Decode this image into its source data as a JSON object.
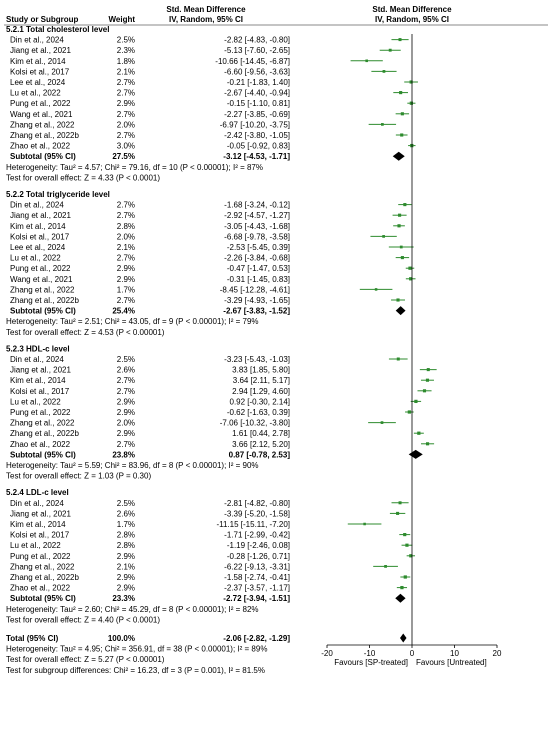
{
  "chart_data": {
    "type": "forest",
    "header": {
      "col_study": "Study or Subgroup",
      "col_weight": "Weight",
      "col_effect_1": "Std. Mean Difference",
      "col_effect_2": "IV, Random, 95% CI",
      "plot_title_1": "Std. Mean Difference",
      "plot_title_2": "IV, Random, 95% CI"
    },
    "axis": {
      "min": -20,
      "max": 20,
      "ticks": [
        -20,
        -10,
        0,
        10,
        20
      ],
      "tick_labels": [
        "-20",
        "-10",
        "0",
        "10",
        "20"
      ],
      "label_left": "Favours [SP-treated]",
      "label_right": "Favours [Untreated]"
    },
    "subgroups": [
      {
        "title": "5.2.1 Total cholesterol level",
        "studies": [
          {
            "study": "Din et al., 2024",
            "weight": "2.5%",
            "est": -2.82,
            "lo": -4.83,
            "hi": -0.8,
            "ci": "-2.82 [-4.83, -0.80]"
          },
          {
            "study": "Jiang et al., 2021",
            "weight": "2.3%",
            "est": -5.13,
            "lo": -7.6,
            "hi": -2.65,
            "ci": "-5.13 [-7.60, -2.65]"
          },
          {
            "study": "Kim et al., 2014",
            "weight": "1.8%",
            "est": -10.66,
            "lo": -14.45,
            "hi": -6.87,
            "ci": "-10.66 [-14.45, -6.87]"
          },
          {
            "study": "Kolsi et al., 2017",
            "weight": "2.1%",
            "est": -6.6,
            "lo": -9.56,
            "hi": -3.63,
            "ci": "-6.60 [-9.56, -3.63]"
          },
          {
            "study": "Lee et al., 2024",
            "weight": "2.7%",
            "est": -0.21,
            "lo": -1.83,
            "hi": 1.4,
            "ci": "-0.21 [-1.83, 1.40]"
          },
          {
            "study": "Lu et al., 2022",
            "weight": "2.7%",
            "est": -2.67,
            "lo": -4.4,
            "hi": -0.94,
            "ci": "-2.67 [-4.40, -0.94]"
          },
          {
            "study": "Pung et al., 2022",
            "weight": "2.9%",
            "est": -0.15,
            "lo": -1.1,
            "hi": 0.81,
            "ci": "-0.15 [-1.10, 0.81]"
          },
          {
            "study": "Wang et al., 2021",
            "weight": "2.7%",
            "est": -2.27,
            "lo": -3.85,
            "hi": -0.69,
            "ci": "-2.27 [-3.85, -0.69]"
          },
          {
            "study": "Zhang et al., 2022",
            "weight": "2.0%",
            "est": -6.97,
            "lo": -10.2,
            "hi": -3.75,
            "ci": "-6.97 [-10.20, -3.75]"
          },
          {
            "study": "Zhang et al., 2022b",
            "weight": "2.7%",
            "est": -2.42,
            "lo": -3.8,
            "hi": -1.05,
            "ci": "-2.42 [-3.80, -1.05]"
          },
          {
            "study": "Zhao et al., 2022",
            "weight": "3.0%",
            "est": -0.05,
            "lo": -0.92,
            "hi": 0.83,
            "ci": "-0.05 [-0.92, 0.83]"
          }
        ],
        "subtotal": {
          "label": "Subtotal (95% CI)",
          "weight": "27.5%",
          "est": -3.12,
          "lo": -4.53,
          "hi": -1.71,
          "ci": "-3.12 [-4.53, -1.71]"
        },
        "heterogeneity": "Heterogeneity: Tau² = 4.57; Chi² = 79.16, df = 10 (P < 0.00001); I² = 87%",
        "overall_test": "Test for overall effect: Z = 4.33 (P < 0.0001)"
      },
      {
        "title": "5.2.2 Total triglyceride level",
        "studies": [
          {
            "study": "Din et al., 2024",
            "weight": "2.7%",
            "est": -1.68,
            "lo": -3.24,
            "hi": -0.12,
            "ci": "-1.68 [-3.24, -0.12]"
          },
          {
            "study": "Jiang et al., 2021",
            "weight": "2.7%",
            "est": -2.92,
            "lo": -4.57,
            "hi": -1.27,
            "ci": "-2.92 [-4.57, -1.27]"
          },
          {
            "study": "Kim et al., 2014",
            "weight": "2.8%",
            "est": -3.05,
            "lo": -4.43,
            "hi": -1.68,
            "ci": "-3.05 [-4.43, -1.68]"
          },
          {
            "study": "Kolsi et al., 2017",
            "weight": "2.0%",
            "est": -6.68,
            "lo": -9.78,
            "hi": -3.58,
            "ci": "-6.68 [-9.78, -3.58]"
          },
          {
            "study": "Lee et al., 2024",
            "weight": "2.1%",
            "est": -2.53,
            "lo": -5.45,
            "hi": 0.39,
            "ci": "-2.53 [-5.45, 0.39]"
          },
          {
            "study": "Lu et al., 2022",
            "weight": "2.7%",
            "est": -2.26,
            "lo": -3.84,
            "hi": -0.68,
            "ci": "-2.26 [-3.84, -0.68]"
          },
          {
            "study": "Pung et al., 2022",
            "weight": "2.9%",
            "est": -0.47,
            "lo": -1.47,
            "hi": 0.53,
            "ci": "-0.47 [-1.47, 0.53]"
          },
          {
            "study": "Wang et al., 2021",
            "weight": "2.9%",
            "est": -0.31,
            "lo": -1.45,
            "hi": 0.83,
            "ci": "-0.31 [-1.45, 0.83]"
          },
          {
            "study": "Zhang et al., 2022",
            "weight": "1.7%",
            "est": -8.45,
            "lo": -12.28,
            "hi": -4.61,
            "ci": "-8.45 [-12.28, -4.61]"
          },
          {
            "study": "Zhang et al., 2022b",
            "weight": "2.7%",
            "est": -3.29,
            "lo": -4.93,
            "hi": -1.65,
            "ci": "-3.29 [-4.93, -1.65]"
          }
        ],
        "subtotal": {
          "label": "Subtotal (95% CI)",
          "weight": "25.4%",
          "est": -2.67,
          "lo": -3.83,
          "hi": -1.52,
          "ci": "-2.67 [-3.83, -1.52]"
        },
        "heterogeneity": "Heterogeneity: Tau² = 2.51; Chi² = 43.05, df = 9 (P < 0.00001); I² = 79%",
        "overall_test": "Test for overall effect: Z = 4.53 (P < 0.00001)"
      },
      {
        "title": "5.2.3 HDL-c level",
        "studies": [
          {
            "study": "Din et al., 2024",
            "weight": "2.5%",
            "est": -3.23,
            "lo": -5.43,
            "hi": -1.03,
            "ci": "-3.23 [-5.43, -1.03]"
          },
          {
            "study": "Jiang et al., 2021",
            "weight": "2.6%",
            "est": 3.83,
            "lo": 1.85,
            "hi": 5.8,
            "ci": "3.83 [1.85, 5.80]"
          },
          {
            "study": "Kim et al., 2014",
            "weight": "2.7%",
            "est": 3.64,
            "lo": 2.11,
            "hi": 5.17,
            "ci": "3.64 [2.11, 5.17]"
          },
          {
            "study": "Kolsi et al., 2017",
            "weight": "2.7%",
            "est": 2.94,
            "lo": 1.29,
            "hi": 4.6,
            "ci": "2.94 [1.29, 4.60]"
          },
          {
            "study": "Lu et al., 2022",
            "weight": "2.9%",
            "est": 0.92,
            "lo": -0.3,
            "hi": 2.14,
            "ci": "0.92 [-0.30, 2.14]"
          },
          {
            "study": "Pung et al., 2022",
            "weight": "2.9%",
            "est": -0.62,
            "lo": -1.63,
            "hi": 0.39,
            "ci": "-0.62 [-1.63, 0.39]"
          },
          {
            "study": "Zhang et al., 2022",
            "weight": "2.0%",
            "est": -7.06,
            "lo": -10.32,
            "hi": -3.8,
            "ci": "-7.06 [-10.32, -3.80]"
          },
          {
            "study": "Zhang et al., 2022b",
            "weight": "2.9%",
            "est": 1.61,
            "lo": 0.44,
            "hi": 2.78,
            "ci": "1.61 [0.44, 2.78]"
          },
          {
            "study": "Zhao et al., 2022",
            "weight": "2.7%",
            "est": 3.66,
            "lo": 2.12,
            "hi": 5.2,
            "ci": "3.66 [2.12, 5.20]"
          }
        ],
        "subtotal": {
          "label": "Subtotal (95% CI)",
          "weight": "23.8%",
          "est": 0.87,
          "lo": -0.78,
          "hi": 2.53,
          "ci": "0.87 [-0.78, 2.53]"
        },
        "heterogeneity": "Heterogeneity: Tau² = 5.59; Chi² = 83.96, df = 8 (P < 0.00001); I² = 90%",
        "overall_test": "Test for overall effect: Z = 1.03 (P = 0.30)"
      },
      {
        "title": "5.2.4 LDL-c level",
        "studies": [
          {
            "study": "Din et al., 2024",
            "weight": "2.5%",
            "est": -2.81,
            "lo": -4.82,
            "hi": -0.8,
            "ci": "-2.81 [-4.82, -0.80]"
          },
          {
            "study": "Jiang et al., 2021",
            "weight": "2.6%",
            "est": -3.39,
            "lo": -5.2,
            "hi": -1.58,
            "ci": "-3.39 [-5.20, -1.58]"
          },
          {
            "study": "Kim et al., 2014",
            "weight": "1.7%",
            "est": -11.15,
            "lo": -15.11,
            "hi": -7.2,
            "ci": "-11.15 [-15.11, -7.20]"
          },
          {
            "study": "Kolsi et al., 2017",
            "weight": "2.8%",
            "est": -1.71,
            "lo": -2.99,
            "hi": -0.42,
            "ci": "-1.71 [-2.99, -0.42]"
          },
          {
            "study": "Lu et al., 2022",
            "weight": "2.8%",
            "est": -1.19,
            "lo": -2.46,
            "hi": 0.08,
            "ci": "-1.19 [-2.46, 0.08]"
          },
          {
            "study": "Pung et al., 2022",
            "weight": "2.9%",
            "est": -0.28,
            "lo": -1.26,
            "hi": 0.71,
            "ci": "-0.28 [-1.26, 0.71]"
          },
          {
            "study": "Zhang et al., 2022",
            "weight": "2.1%",
            "est": -6.22,
            "lo": -9.13,
            "hi": -3.31,
            "ci": "-6.22 [-9.13, -3.31]"
          },
          {
            "study": "Zhang et al., 2022b",
            "weight": "2.9%",
            "est": -1.58,
            "lo": -2.74,
            "hi": -0.41,
            "ci": "-1.58 [-2.74, -0.41]"
          },
          {
            "study": "Zhao et al., 2022",
            "weight": "2.9%",
            "est": -2.37,
            "lo": -3.57,
            "hi": -1.17,
            "ci": "-2.37 [-3.57, -1.17]"
          }
        ],
        "subtotal": {
          "label": "Subtotal (95% CI)",
          "weight": "23.3%",
          "est": -2.72,
          "lo": -3.94,
          "hi": -1.51,
          "ci": "-2.72 [-3.94, -1.51]"
        },
        "heterogeneity": "Heterogeneity: Tau² = 2.60; Chi² = 45.29, df = 8 (P < 0.00001); I² = 82%",
        "overall_test": "Test for overall effect: Z = 4.40 (P < 0.0001)"
      }
    ],
    "total": {
      "label": "Total (95% CI)",
      "weight": "100.0%",
      "est": -2.06,
      "lo": -2.82,
      "hi": -1.29,
      "ci": "-2.06 [-2.82, -1.29]"
    },
    "total_heterogeneity": "Heterogeneity: Tau² = 4.95; Chi² = 356.91, df = 38 (P < 0.00001); I² = 89%",
    "total_overall_test": "Test for overall effect: Z = 5.27 (P < 0.00001)",
    "subgroup_differences": "Test for subgroup differences: Chi² = 16.23, df = 3 (P = 0.001), I² = 81.5%",
    "colors": {
      "study_marker": "#2e8b2e",
      "diamond": "#000000",
      "header_rule": "#888888"
    }
  }
}
